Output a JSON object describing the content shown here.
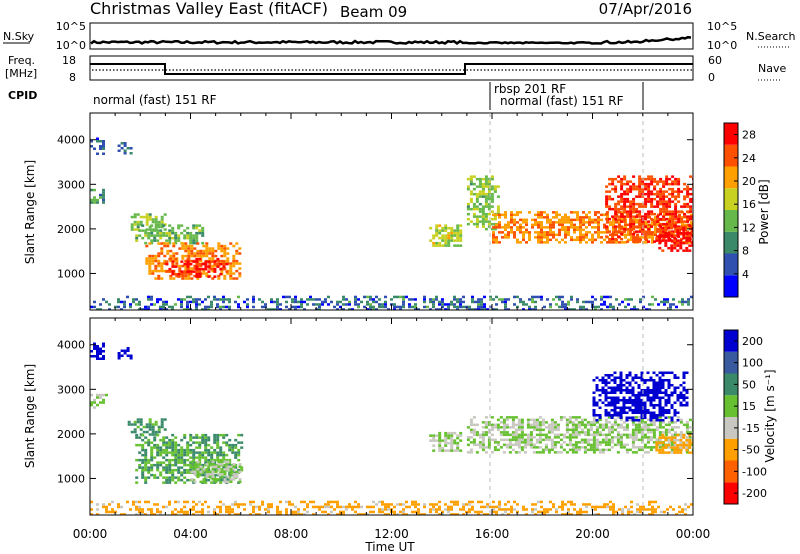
{
  "header": {
    "title": "Christmas Valley East (fitACF)",
    "beam": "Beam 09",
    "date": "07/Apr/2016"
  },
  "top_panels": {
    "nsky_label": "N.Sky",
    "nsky_ticks": [
      "10^5",
      "10^0"
    ],
    "nsearch_label": "N.Search",
    "nsearch_ticks": [
      "10^5",
      "10^0"
    ],
    "freq_label_1": "Freq.",
    "freq_label_2": "[MHz]",
    "freq_ticks": [
      "18",
      "8"
    ],
    "nave_label": "Nave",
    "nave_ticks": [
      "60",
      "0"
    ],
    "cpid_label": "CPID",
    "cpid_segments": [
      "normal (fast) 151 RF",
      "rbsp 201 RF",
      "normal (fast) 151 RF"
    ]
  },
  "chart_data": [
    {
      "type": "heatmap",
      "name": "power",
      "xlabel": "",
      "ylabel": "Slant Range [km]",
      "x_ticks": [
        "00:00",
        "04:00",
        "08:00",
        "12:00",
        "16:00",
        "20:00",
        "00:00"
      ],
      "xlim_hours": [
        0,
        24
      ],
      "y_ticks": [
        1000,
        2000,
        3000,
        4000
      ],
      "ylim": [
        180,
        4600
      ],
      "colorbar_label": "Power [dB]",
      "colorbar_ticks": [
        4,
        8,
        12,
        16,
        20,
        24,
        28
      ],
      "colorbar_range": [
        0,
        30
      ],
      "colorbar_colors": [
        "#0000ff",
        "#3050b0",
        "#3a8a6a",
        "#66b84a",
        "#c8d020",
        "#ffa000",
        "#ff5000",
        "#ff0000"
      ],
      "regions": [
        {
          "t": [
            0.0,
            0.5
          ],
          "r": [
            3700,
            4050
          ],
          "value": 6
        },
        {
          "t": [
            1.1,
            1.6
          ],
          "r": [
            3700,
            3950
          ],
          "value": 8
        },
        {
          "t": [
            0.0,
            0.6
          ],
          "r": [
            2600,
            2900
          ],
          "value": 10
        },
        {
          "t": [
            1.5,
            3.0
          ],
          "r": [
            2000,
            2350
          ],
          "value": 14
        },
        {
          "t": [
            1.8,
            4.5
          ],
          "r": [
            1700,
            2100
          ],
          "value": 13
        },
        {
          "t": [
            2.2,
            6.0
          ],
          "r": [
            900,
            1700
          ],
          "value": 22
        },
        {
          "t": [
            3.0,
            5.5
          ],
          "r": [
            950,
            1350
          ],
          "value": 27
        },
        {
          "t": [
            0.0,
            24.0
          ],
          "r": [
            200,
            500
          ],
          "value": 6
        },
        {
          "t": [
            13.5,
            14.8
          ],
          "r": [
            1600,
            2100
          ],
          "value": 16
        },
        {
          "t": [
            15.0,
            16.2
          ],
          "r": [
            2000,
            3200
          ],
          "value": 14
        },
        {
          "t": [
            16.0,
            24.0
          ],
          "r": [
            1700,
            2400
          ],
          "value": 22
        },
        {
          "t": [
            20.5,
            24.0
          ],
          "r": [
            1700,
            3200
          ],
          "value": 26
        },
        {
          "t": [
            22.5,
            24.0
          ],
          "r": [
            1500,
            2100
          ],
          "value": 28
        }
      ]
    },
    {
      "type": "heatmap",
      "name": "velocity",
      "xlabel": "Time UT",
      "ylabel": "Slant Range [km]",
      "x_ticks": [
        "00:00",
        "04:00",
        "08:00",
        "12:00",
        "16:00",
        "20:00",
        "00:00"
      ],
      "xlim_hours": [
        0,
        24
      ],
      "y_ticks": [
        1000,
        2000,
        3000,
        4000
      ],
      "ylim": [
        180,
        4600
      ],
      "colorbar_label": "Velocity [m s⁻¹]",
      "colorbar_ticks": [
        "200",
        "100",
        "50",
        "15",
        "-15",
        "-50",
        "-100",
        "-200"
      ],
      "colorbar_colors": [
        "#0000d0",
        "#3a5aa0",
        "#3a8a6a",
        "#66c030",
        "#c8c8c0",
        "#ffa000",
        "#ff6000",
        "#ff0000"
      ],
      "regions": [
        {
          "t": [
            0.0,
            0.5
          ],
          "r": [
            3700,
            4050
          ],
          "value": 200
        },
        {
          "t": [
            1.1,
            1.6
          ],
          "r": [
            3700,
            3950
          ],
          "value": 200
        },
        {
          "t": [
            0.0,
            0.6
          ],
          "r": [
            2600,
            2900
          ],
          "value": 0
        },
        {
          "t": [
            1.5,
            3.0
          ],
          "r": [
            2000,
            2350
          ],
          "value": 40
        },
        {
          "t": [
            1.8,
            6.0
          ],
          "r": [
            900,
            2000
          ],
          "value": 30
        },
        {
          "t": [
            4.0,
            6.0
          ],
          "r": [
            900,
            1400
          ],
          "value": 0
        },
        {
          "t": [
            0.0,
            24.0
          ],
          "r": [
            200,
            500
          ],
          "value": -40
        },
        {
          "t": [
            13.5,
            14.8
          ],
          "r": [
            1600,
            2100
          ],
          "value": 0
        },
        {
          "t": [
            15.0,
            24.0
          ],
          "r": [
            1600,
            2400
          ],
          "value": 0
        },
        {
          "t": [
            20.0,
            23.8
          ],
          "r": [
            2300,
            3400
          ],
          "value": 200
        },
        {
          "t": [
            22.5,
            24.0
          ],
          "r": [
            1600,
            2000
          ],
          "value": -40
        }
      ]
    }
  ]
}
